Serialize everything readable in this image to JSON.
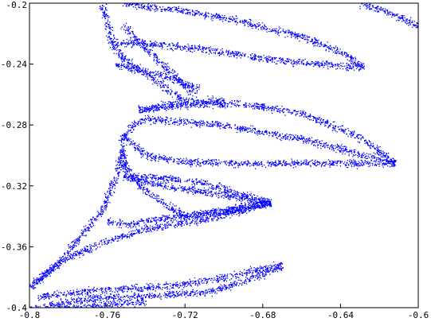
{
  "chart_data": {
    "type": "scatter",
    "title": "",
    "xlabel": "",
    "ylabel": "",
    "xlim": [
      -0.8,
      -0.6
    ],
    "ylim": [
      -0.4,
      -0.2
    ],
    "grid": false,
    "x_ticks": [
      -0.8,
      -0.76,
      -0.72,
      -0.68,
      -0.64,
      -0.6
    ],
    "x_tick_labels": [
      "-0.8",
      "-0.76",
      "-0.72",
      "-0.68",
      "-0.64",
      "-0.6"
    ],
    "y_ticks": [
      -0.2,
      -0.24,
      -0.28,
      -0.32,
      -0.36,
      -0.4
    ],
    "y_tick_labels": [
      "-0.2",
      "-0.24",
      "-0.28",
      "-0.32",
      "-0.36",
      "-0.4"
    ],
    "series": [
      {
        "color": "#0000ff",
        "marker": "dot",
        "note_structure": "dense point cloud forming curved filament bands (strange attractor)",
        "filaments": [
          {
            "points": [
              [
                -0.763,
                -0.2
              ],
              [
                -0.76,
                -0.212
              ],
              [
                -0.758,
                -0.226
              ],
              [
                -0.752,
                -0.236
              ],
              [
                -0.738,
                -0.248
              ],
              [
                -0.728,
                -0.258
              ],
              [
                -0.722,
                -0.262
              ]
            ]
          },
          {
            "points": [
              [
                -0.758,
                -0.226
              ],
              [
                -0.74,
                -0.226
              ],
              [
                -0.71,
                -0.23
              ],
              [
                -0.68,
                -0.236
              ],
              [
                -0.65,
                -0.24
              ],
              [
                -0.628,
                -0.242
              ]
            ]
          },
          {
            "points": [
              [
                -0.752,
                -0.2
              ],
              [
                -0.72,
                -0.205
              ],
              [
                -0.69,
                -0.212
              ],
              [
                -0.66,
                -0.222
              ],
              [
                -0.64,
                -0.232
              ],
              [
                -0.628,
                -0.242
              ]
            ]
          },
          {
            "points": [
              [
                -0.752,
                -0.214
              ],
              [
                -0.735,
                -0.236
              ],
              [
                -0.715,
                -0.26
              ]
            ]
          },
          {
            "points": [
              [
                -0.756,
                -0.24
              ],
              [
                -0.73,
                -0.248
              ],
              [
                -0.713,
                -0.256
              ]
            ]
          },
          {
            "points": [
              [
                -0.744,
                -0.27
              ],
              [
                -0.715,
                -0.266
              ],
              [
                -0.69,
                -0.266
              ],
              [
                -0.66,
                -0.272
              ],
              [
                -0.63,
                -0.288
              ],
              [
                -0.612,
                -0.305
              ]
            ]
          },
          {
            "points": [
              [
                -0.744,
                -0.27
              ],
              [
                -0.72,
                -0.264
              ],
              [
                -0.7,
                -0.264
              ]
            ]
          },
          {
            "points": [
              [
                -0.752,
                -0.286
              ],
              [
                -0.74,
                -0.3
              ],
              [
                -0.72,
                -0.304
              ],
              [
                -0.69,
                -0.305
              ],
              [
                -0.65,
                -0.305
              ],
              [
                -0.612,
                -0.305
              ]
            ]
          },
          {
            "points": [
              [
                -0.75,
                -0.285
              ],
              [
                -0.745,
                -0.278
              ],
              [
                -0.74,
                -0.276
              ],
              [
                -0.7,
                -0.28
              ],
              [
                -0.66,
                -0.289
              ],
              [
                -0.612,
                -0.305
              ]
            ]
          },
          {
            "points": [
              [
                -0.752,
                -0.286
              ],
              [
                -0.752,
                -0.3
              ],
              [
                -0.75,
                -0.314
              ],
              [
                -0.735,
                -0.314
              ],
              [
                -0.71,
                -0.318
              ],
              [
                -0.69,
                -0.326
              ],
              [
                -0.676,
                -0.331
              ]
            ]
          },
          {
            "points": [
              [
                -0.752,
                -0.314
              ],
              [
                -0.73,
                -0.32
              ],
              [
                -0.7,
                -0.326
              ],
              [
                -0.676,
                -0.331
              ]
            ]
          },
          {
            "points": [
              [
                -0.752,
                -0.305
              ],
              [
                -0.742,
                -0.322
              ],
              [
                -0.72,
                -0.34
              ],
              [
                -0.7,
                -0.336
              ],
              [
                -0.676,
                -0.331
              ]
            ]
          },
          {
            "points": [
              [
                -0.752,
                -0.296
              ],
              [
                -0.756,
                -0.315
              ],
              [
                -0.762,
                -0.334
              ],
              [
                -0.768,
                -0.344
              ],
              [
                -0.776,
                -0.356
              ],
              [
                -0.786,
                -0.372
              ],
              [
                -0.8,
                -0.386
              ]
            ]
          },
          {
            "points": [
              [
                -0.76,
                -0.343
              ],
              [
                -0.75,
                -0.345
              ],
              [
                -0.74,
                -0.343
              ],
              [
                -0.71,
                -0.338
              ],
              [
                -0.676,
                -0.331
              ]
            ]
          },
          {
            "points": [
              [
                -0.8,
                -0.386
              ],
              [
                -0.785,
                -0.37
              ],
              [
                -0.775,
                -0.364
              ],
              [
                -0.76,
                -0.356
              ],
              [
                -0.74,
                -0.348
              ],
              [
                -0.71,
                -0.342
              ],
              [
                -0.676,
                -0.331
              ]
            ]
          },
          {
            "points": [
              [
                -0.796,
                -0.393
              ],
              [
                -0.78,
                -0.39
              ],
              [
                -0.76,
                -0.388
              ],
              [
                -0.73,
                -0.386
              ],
              [
                -0.7,
                -0.38
              ],
              [
                -0.68,
                -0.374
              ],
              [
                -0.67,
                -0.372
              ]
            ]
          },
          {
            "points": [
              [
                -0.79,
                -0.398
              ],
              [
                -0.77,
                -0.394
              ],
              [
                -0.74,
                -0.392
              ],
              [
                -0.71,
                -0.39
              ],
              [
                -0.69,
                -0.383
              ],
              [
                -0.67,
                -0.372
              ]
            ]
          },
          {
            "points": [
              [
                -0.8,
                -0.4
              ],
              [
                -0.78,
                -0.4
              ],
              [
                -0.76,
                -0.398
              ],
              [
                -0.74,
                -0.396
              ]
            ]
          },
          {
            "points": [
              [
                -0.63,
                -0.2
              ],
              [
                -0.618,
                -0.205
              ],
              [
                -0.608,
                -0.21
              ],
              [
                -0.6,
                -0.215
              ]
            ]
          }
        ]
      }
    ]
  }
}
